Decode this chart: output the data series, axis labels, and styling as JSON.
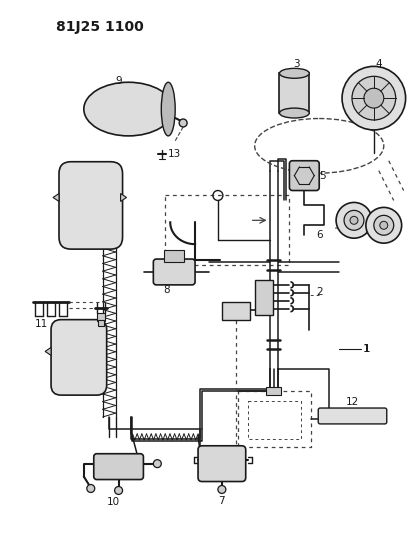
{
  "title": "81J25 1100",
  "bg_color": "#ffffff",
  "line_color": "#1a1a1a",
  "dashed_color": "#444444",
  "title_fontsize": 10,
  "label_fontsize": 7.5,
  "figsize": [
    4.09,
    5.33
  ],
  "dpi": 100
}
